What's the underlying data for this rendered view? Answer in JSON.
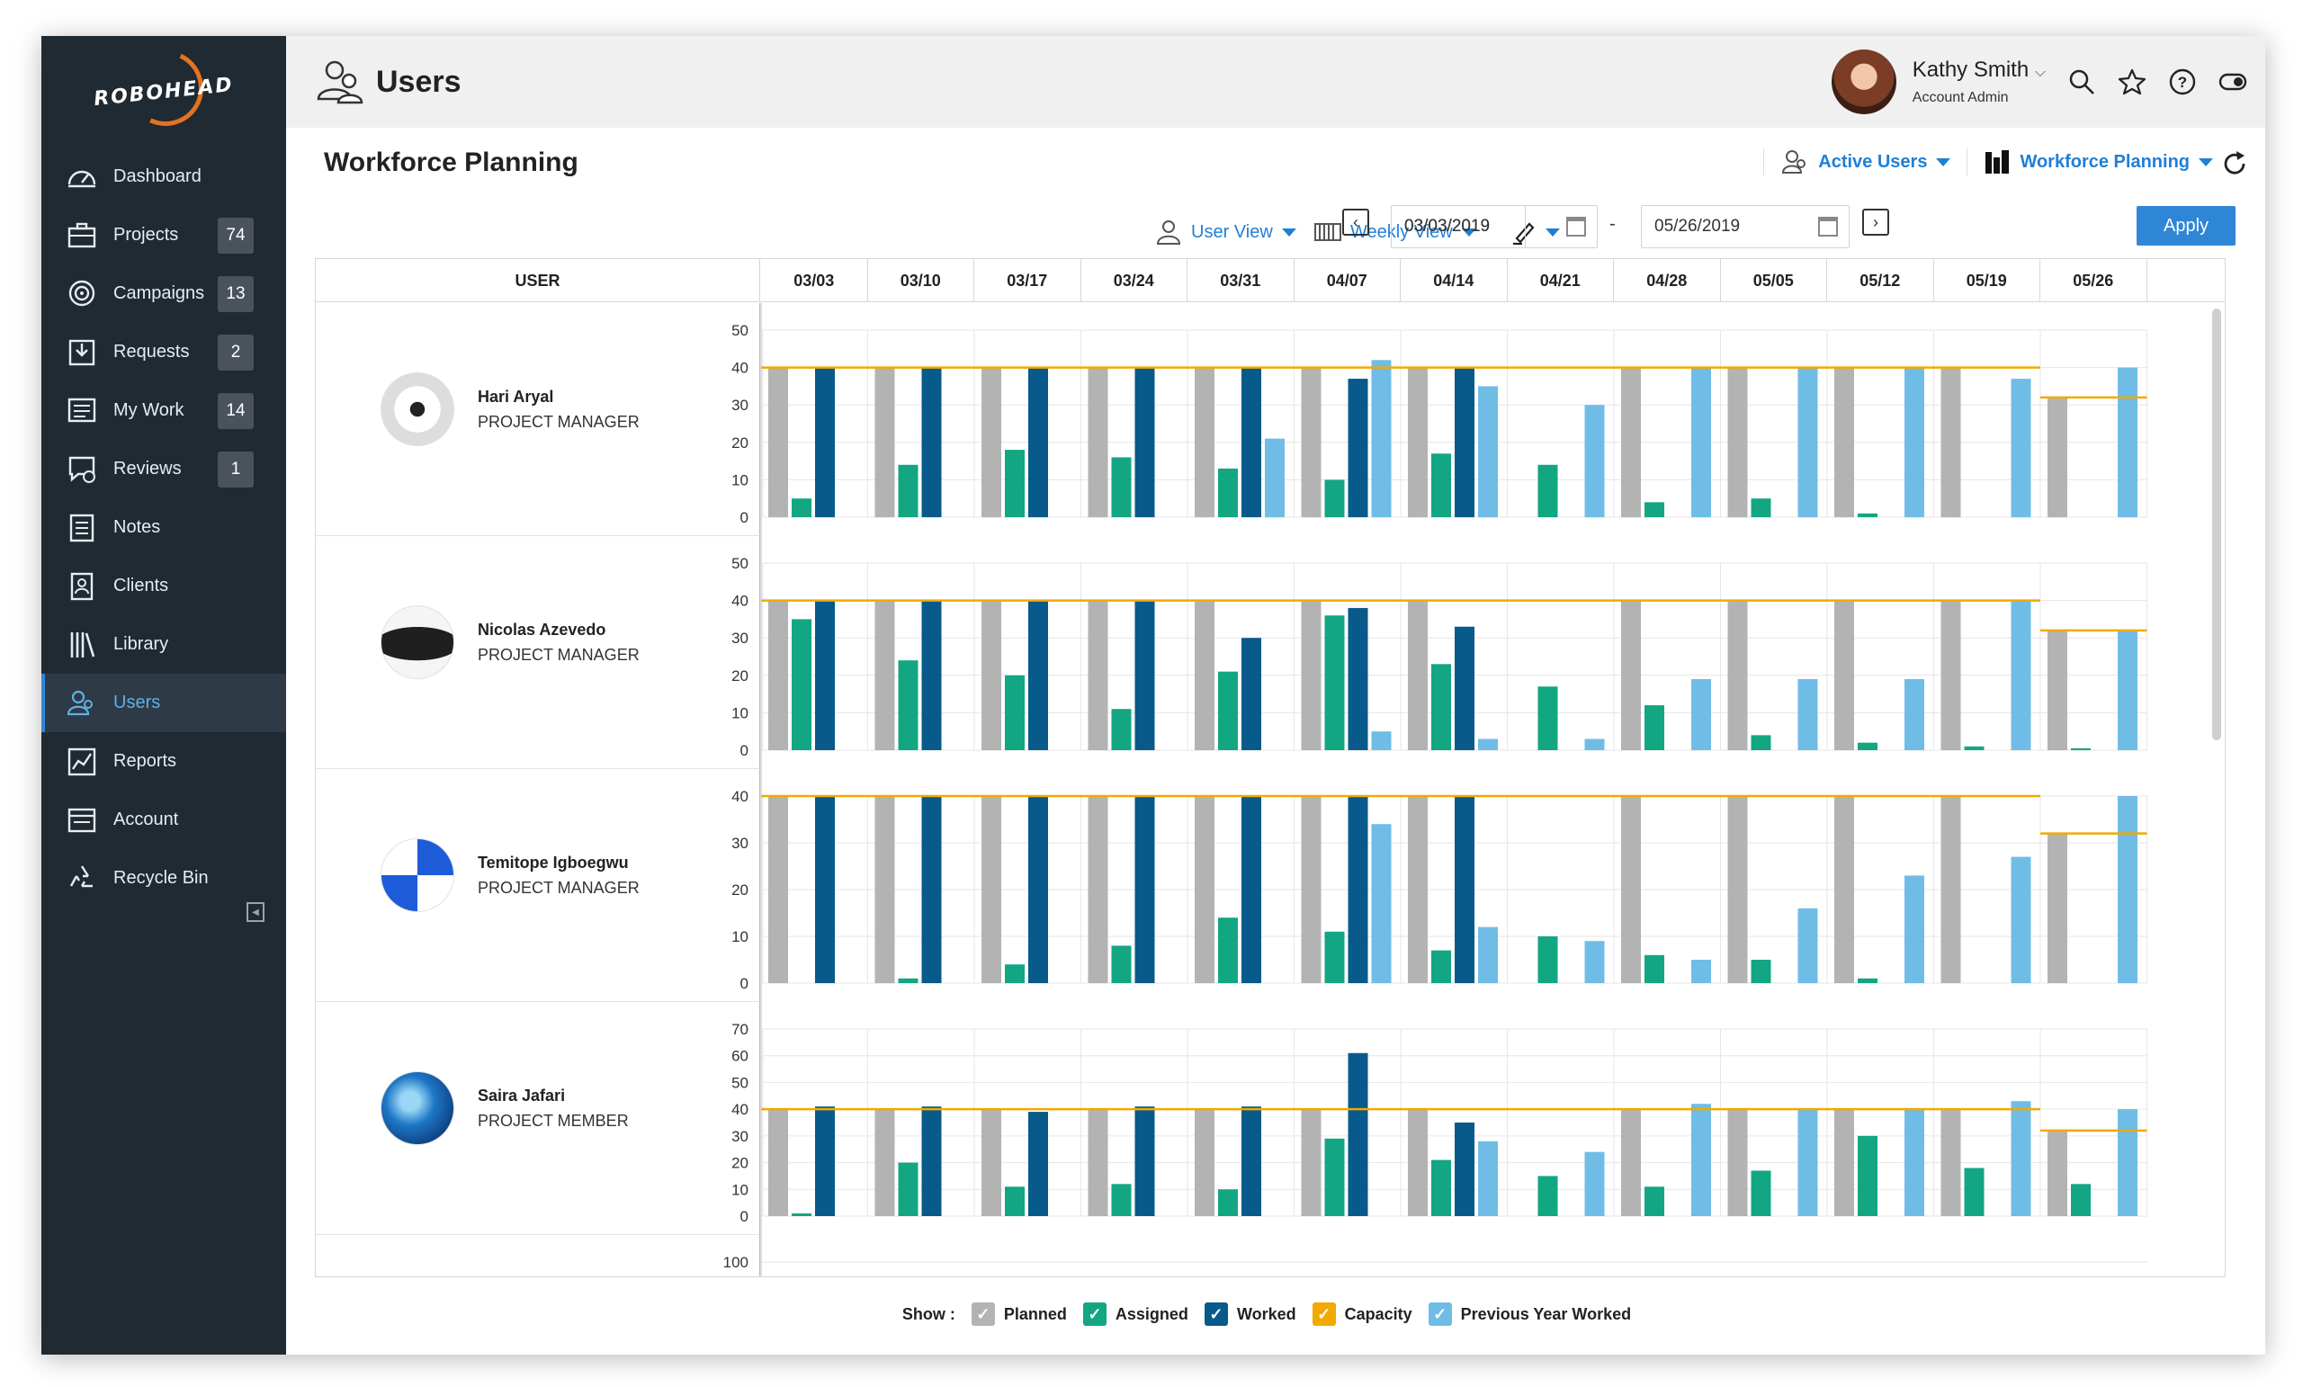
{
  "app": {
    "logo": "ROBOHEAD",
    "page_title": "Users"
  },
  "sidebar": {
    "items": [
      {
        "label": "Dashboard",
        "icon": "dashboard-icon"
      },
      {
        "label": "Projects",
        "icon": "briefcase-icon",
        "count": "74"
      },
      {
        "label": "Campaigns",
        "icon": "target-icon",
        "count": "13"
      },
      {
        "label": "Requests",
        "icon": "inbox-icon",
        "count": "2"
      },
      {
        "label": "My Work",
        "icon": "list-icon",
        "count": "14"
      },
      {
        "label": "Reviews",
        "icon": "review-icon",
        "count": "1"
      },
      {
        "label": "Notes",
        "icon": "notes-icon"
      },
      {
        "label": "Clients",
        "icon": "clients-icon"
      },
      {
        "label": "Library",
        "icon": "library-icon"
      },
      {
        "label": "Users",
        "icon": "users-icon",
        "active": true
      },
      {
        "label": "Reports",
        "icon": "reports-icon"
      },
      {
        "label": "Account",
        "icon": "account-icon"
      },
      {
        "label": "Recycle Bin",
        "icon": "recycle-icon"
      }
    ]
  },
  "user": {
    "name": "Kathy Smith",
    "role": "Account Admin"
  },
  "section": {
    "title": "Workforce Planning",
    "filter_users": "Active Users",
    "filter_view": "Workforce Planning"
  },
  "toolbar": {
    "user_view": "User View",
    "weekly_view": "Weekly View",
    "start_date": "03/03/2019",
    "date_sep": "-",
    "end_date": "05/26/2019",
    "apply": "Apply"
  },
  "grid": {
    "user_col": "USER",
    "weeks": [
      "03/03",
      "03/10",
      "03/17",
      "03/24",
      "03/31",
      "04/07",
      "04/14",
      "04/21",
      "04/28",
      "05/05",
      "05/12",
      "05/19",
      "05/26"
    ]
  },
  "colors": {
    "planned": "#b3b3b3",
    "assigned": "#13a683",
    "worked": "#075a8a",
    "capacity": "#f2a900",
    "prev_year": "#6fbde6"
  },
  "legend": {
    "show": "Show :",
    "planned": "Planned",
    "assigned": "Assigned",
    "worked": "Worked",
    "capacity": "Capacity",
    "prev_year": "Previous Year Worked"
  },
  "chart_data": [
    {
      "type": "bar",
      "user": "Hari Aryal",
      "role": "PROJECT MANAGER",
      "avatar": "soccer-ball",
      "ylim": [
        0,
        50
      ],
      "yticks": [
        0,
        10,
        20,
        30,
        40,
        50
      ],
      "categories": [
        "03/03",
        "03/10",
        "03/17",
        "03/24",
        "03/31",
        "04/07",
        "04/14",
        "04/21",
        "04/28",
        "05/05",
        "05/12",
        "05/19",
        "05/26"
      ],
      "series": [
        {
          "name": "Planned",
          "values": [
            40,
            40,
            40,
            40,
            40,
            40,
            40,
            0,
            40,
            40,
            40,
            40,
            32
          ]
        },
        {
          "name": "Assigned",
          "values": [
            5,
            14,
            18,
            16,
            13,
            10,
            17,
            14,
            4,
            5,
            1,
            0,
            0
          ]
        },
        {
          "name": "Worked",
          "values": [
            40,
            40,
            40,
            40,
            40,
            37,
            40,
            0,
            0,
            0,
            0,
            0,
            0
          ]
        },
        {
          "name": "Previous Year Worked",
          "values": [
            0,
            0,
            0,
            0,
            21,
            42,
            35,
            30,
            40,
            40,
            40,
            37,
            40
          ]
        }
      ],
      "capacity": [
        40,
        40,
        40,
        40,
        40,
        40,
        40,
        40,
        40,
        40,
        40,
        40,
        32
      ]
    },
    {
      "type": "bar",
      "user": "Nicolas Azevedo",
      "role": "PROJECT MANAGER",
      "avatar": "beret",
      "ylim": [
        0,
        50
      ],
      "yticks": [
        0,
        10,
        20,
        30,
        40,
        50
      ],
      "categories": [
        "03/03",
        "03/10",
        "03/17",
        "03/24",
        "03/31",
        "04/07",
        "04/14",
        "04/21",
        "04/28",
        "05/05",
        "05/12",
        "05/19",
        "05/26"
      ],
      "series": [
        {
          "name": "Planned",
          "values": [
            40,
            40,
            40,
            40,
            40,
            40,
            40,
            0,
            40,
            40,
            40,
            40,
            32
          ]
        },
        {
          "name": "Assigned",
          "values": [
            35,
            24,
            20,
            11,
            21,
            36,
            23,
            17,
            12,
            4,
            2,
            1,
            0.5
          ]
        },
        {
          "name": "Worked",
          "values": [
            40,
            40,
            40,
            40,
            30,
            38,
            33,
            0,
            0,
            0,
            0,
            0,
            0
          ]
        },
        {
          "name": "Previous Year Worked",
          "values": [
            0,
            0,
            0,
            0,
            0,
            5,
            3,
            3,
            19,
            19,
            19,
            40,
            32
          ]
        }
      ],
      "capacity": [
        40,
        40,
        40,
        40,
        40,
        40,
        40,
        40,
        40,
        40,
        40,
        40,
        32
      ]
    },
    {
      "type": "bar",
      "user": "Temitope Igboegwu",
      "role": "PROJECT MANAGER",
      "avatar": "beach-ball",
      "ylim": [
        0,
        40
      ],
      "yticks": [
        0,
        10,
        20,
        30,
        40
      ],
      "categories": [
        "03/03",
        "03/10",
        "03/17",
        "03/24",
        "03/31",
        "04/07",
        "04/14",
        "04/21",
        "04/28",
        "05/05",
        "05/12",
        "05/19",
        "05/26"
      ],
      "series": [
        {
          "name": "Planned",
          "values": [
            40,
            40,
            40,
            40,
            40,
            40,
            40,
            0,
            40,
            40,
            40,
            40,
            32
          ]
        },
        {
          "name": "Assigned",
          "values": [
            0,
            1,
            4,
            8,
            14,
            11,
            7,
            10,
            6,
            5,
            1,
            0,
            0
          ]
        },
        {
          "name": "Worked",
          "values": [
            40,
            40,
            40,
            40,
            40,
            40,
            40,
            0,
            0,
            0,
            0,
            0,
            0
          ]
        },
        {
          "name": "Previous Year Worked",
          "values": [
            0,
            0,
            0,
            0,
            0,
            34,
            12,
            9,
            5,
            16,
            23,
            27,
            40
          ]
        }
      ],
      "capacity": [
        40,
        40,
        40,
        40,
        40,
        40,
        40,
        40,
        40,
        40,
        40,
        40,
        32
      ]
    },
    {
      "type": "bar",
      "user": "Saira Jafari",
      "role": "PROJECT MEMBER",
      "avatar": "wave",
      "ylim": [
        0,
        70
      ],
      "yticks": [
        0,
        10,
        20,
        30,
        40,
        50,
        60,
        70
      ],
      "categories": [
        "03/03",
        "03/10",
        "03/17",
        "03/24",
        "03/31",
        "04/07",
        "04/14",
        "04/21",
        "04/28",
        "05/05",
        "05/12",
        "05/19",
        "05/26"
      ],
      "series": [
        {
          "name": "Planned",
          "values": [
            40,
            40,
            40,
            40,
            40,
            40,
            40,
            0,
            40,
            40,
            40,
            40,
            32
          ]
        },
        {
          "name": "Assigned",
          "values": [
            1,
            20,
            11,
            12,
            10,
            29,
            21,
            15,
            11,
            17,
            30,
            18,
            12
          ]
        },
        {
          "name": "Worked",
          "values": [
            41,
            41,
            39,
            41,
            41,
            61,
            35,
            0,
            0,
            0,
            0,
            0,
            0
          ]
        },
        {
          "name": "Previous Year Worked",
          "values": [
            0,
            0,
            0,
            0,
            0,
            0,
            28,
            24,
            42,
            40,
            40,
            43,
            40
          ]
        }
      ],
      "capacity": [
        40,
        40,
        40,
        40,
        40,
        40,
        40,
        40,
        40,
        40,
        40,
        40,
        32
      ]
    }
  ],
  "next_row_tick": "100"
}
